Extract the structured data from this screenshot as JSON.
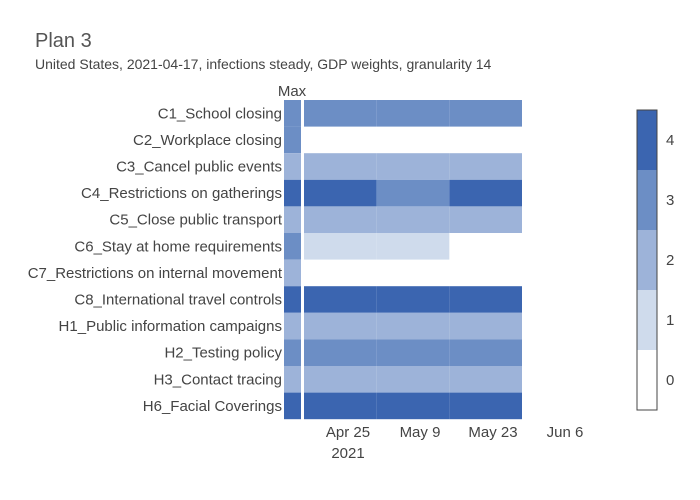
{
  "chart_data": {
    "type": "heatmap",
    "title": "Plan 3",
    "subtitle": "United States, 2021-04-17, infections steady, GDP weights, granularity 14",
    "max_label": "Max",
    "x_ticks": [
      {
        "date": "2021-04-25",
        "label": "Apr 25"
      },
      {
        "date": "2021-05-09",
        "label": "May 9"
      },
      {
        "date": "2021-05-23",
        "label": "May 23"
      },
      {
        "date": "2021-06-06",
        "label": "Jun 6"
      }
    ],
    "x_year_label": "2021",
    "x_range": [
      "2021-04-14",
      "2021-06-16"
    ],
    "periods": [
      {
        "start": "2021-04-17",
        "end": "2021-05-01"
      },
      {
        "start": "2021-05-01",
        "end": "2021-05-15"
      },
      {
        "start": "2021-05-15",
        "end": "2021-05-29"
      }
    ],
    "rows": [
      {
        "label": "C1_School closing",
        "max": 3,
        "values": [
          3,
          3,
          3
        ]
      },
      {
        "label": "C2_Workplace closing",
        "max": 3,
        "values": [
          null,
          null,
          null
        ]
      },
      {
        "label": "C3_Cancel public events",
        "max": 2,
        "values": [
          2,
          2,
          2
        ]
      },
      {
        "label": "C4_Restrictions on gatherings",
        "max": 4,
        "values": [
          4,
          3,
          4
        ]
      },
      {
        "label": "C5_Close public transport",
        "max": 2,
        "values": [
          2,
          2,
          2
        ]
      },
      {
        "label": "C6_Stay at home requirements",
        "max": 3,
        "values": [
          1,
          1,
          null
        ]
      },
      {
        "label": "C7_Restrictions on internal movement",
        "max": 2,
        "values": [
          null,
          null,
          null
        ]
      },
      {
        "label": "C8_International travel controls",
        "max": 4,
        "values": [
          4,
          4,
          4
        ]
      },
      {
        "label": "H1_Public information campaigns",
        "max": 2,
        "values": [
          2,
          2,
          2
        ]
      },
      {
        "label": "H2_Testing policy",
        "max": 3,
        "values": [
          3,
          3,
          3
        ]
      },
      {
        "label": "H3_Contact tracing",
        "max": 2,
        "values": [
          2,
          2,
          2
        ]
      },
      {
        "label": "H6_Facial Coverings",
        "max": 4,
        "values": [
          4,
          4,
          4
        ]
      }
    ],
    "colorscale": {
      "min": 0,
      "max": 4,
      "colors": [
        "#ffffff",
        "#cfdbec",
        "#9db3d9",
        "#6c8ec5",
        "#3b65b0"
      ],
      "ticks": [
        "0",
        "1",
        "2",
        "3",
        "4"
      ]
    }
  }
}
